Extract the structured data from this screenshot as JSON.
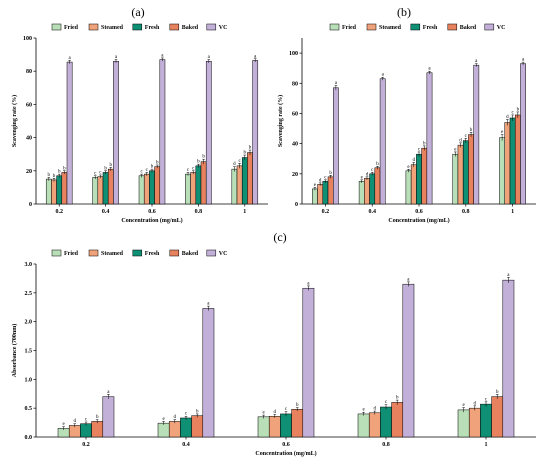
{
  "colors": {
    "Fried": "#b9dfb9",
    "Steamed": "#f0a27a",
    "Fresh": "#0f8f74",
    "Baked": "#e8825e",
    "VC": "#c3b0d8"
  },
  "chart_data": [
    {
      "panel": "(a)",
      "type": "bar",
      "categories": [
        "0.2",
        "0.4",
        "0.6",
        "0.8",
        "1"
      ],
      "xlabel": "Concentration (mg/mL)",
      "ylabel": "Scavenging rate (%)",
      "ylim": [
        0,
        100
      ],
      "yticks": [
        "0",
        "20",
        "40",
        "60",
        "80",
        "100"
      ],
      "legend": "top",
      "series": [
        {
          "name": "Fried",
          "values": [
            15,
            16,
            17,
            18,
            21
          ],
          "errors": [
            1,
            1,
            1,
            1,
            1.5
          ],
          "labels": [
            "b",
            "c",
            "c",
            "c",
            "d"
          ]
        },
        {
          "name": "Steamed",
          "values": [
            14.5,
            16.5,
            18,
            19,
            23
          ],
          "errors": [
            1,
            1,
            1,
            1,
            1.5
          ],
          "labels": [
            "b",
            "c",
            "c",
            "c",
            "c"
          ]
        },
        {
          "name": "Fresh",
          "values": [
            17,
            19,
            20,
            23,
            28
          ],
          "errors": [
            1,
            1,
            1,
            1,
            1.5
          ],
          "labels": [
            "b",
            "b",
            "b",
            "b",
            "b"
          ]
        },
        {
          "name": "Baked",
          "values": [
            19,
            21,
            22.5,
            25.5,
            31
          ],
          "errors": [
            1,
            1,
            1,
            1.5,
            1.5
          ],
          "labels": [
            "b",
            "b",
            "b",
            "b",
            "b"
          ]
        },
        {
          "name": "VC",
          "values": [
            85.5,
            86,
            87,
            86,
            86.5
          ],
          "errors": [
            1,
            1,
            1,
            1,
            1
          ],
          "labels": [
            "a",
            "a",
            "a",
            "a",
            "a"
          ]
        }
      ]
    },
    {
      "panel": "(b)",
      "type": "bar",
      "categories": [
        "0.2",
        "0.4",
        "0.6",
        "0.8",
        "1"
      ],
      "xlabel": "Concentration (mg/mL)",
      "ylabel": "Scavenging rate (%)",
      "ylim": [
        0,
        110
      ],
      "yticks": [
        "0",
        "20",
        "40",
        "60",
        "80",
        "100"
      ],
      "legend": "top",
      "series": [
        {
          "name": "Fried",
          "values": [
            10,
            15,
            22,
            33,
            44
          ],
          "errors": [
            1,
            1,
            1,
            1.5,
            2
          ],
          "labels": [
            "e",
            "e",
            "e",
            "e",
            "e"
          ]
        },
        {
          "name": "Steamed",
          "values": [
            13,
            17,
            26,
            39,
            54
          ],
          "errors": [
            1,
            1,
            1.5,
            1.5,
            2
          ],
          "labels": [
            "d",
            "d",
            "d",
            "d",
            "d"
          ]
        },
        {
          "name": "Fresh",
          "values": [
            15,
            20,
            33,
            42,
            57
          ],
          "errors": [
            1,
            1,
            1.5,
            1.5,
            2
          ],
          "labels": [
            "c",
            "c",
            "c",
            "c",
            "c"
          ]
        },
        {
          "name": "Baked",
          "values": [
            18,
            24,
            37,
            46,
            59
          ],
          "errors": [
            1,
            1,
            1.5,
            1.5,
            2
          ],
          "labels": [
            "b",
            "b",
            "b",
            "b",
            "b"
          ]
        },
        {
          "name": "VC",
          "values": [
            77,
            83,
            87,
            92,
            93
          ],
          "errors": [
            1.5,
            1,
            1,
            1,
            1
          ],
          "labels": [
            "a",
            "a",
            "a",
            "a",
            "a"
          ]
        }
      ]
    },
    {
      "panel": "(c)",
      "type": "bar",
      "categories": [
        "0.2",
        "0.4",
        "0.6",
        "0.8",
        "1"
      ],
      "xlabel": "Concentration (mg/mL)",
      "ylabel": "Absorbance (700nm)",
      "ylim": [
        0,
        3.0
      ],
      "yticks": [
        "0.0",
        "0.5",
        "1.0",
        "1.5",
        "2.0",
        "2.5",
        "3.0"
      ],
      "legend": "top",
      "series": [
        {
          "name": "Fried",
          "values": [
            0.15,
            0.24,
            0.35,
            0.4,
            0.47
          ],
          "errors": [
            0.03,
            0.03,
            0.03,
            0.03,
            0.04
          ],
          "labels": [
            "e",
            "e",
            "e",
            "e",
            "e"
          ]
        },
        {
          "name": "Steamed",
          "values": [
            0.2,
            0.27,
            0.36,
            0.42,
            0.5
          ],
          "errors": [
            0.03,
            0.03,
            0.03,
            0.03,
            0.04
          ],
          "labels": [
            "d",
            "d",
            "d",
            "d",
            "d"
          ]
        },
        {
          "name": "Fresh",
          "values": [
            0.23,
            0.33,
            0.4,
            0.52,
            0.57
          ],
          "errors": [
            0.03,
            0.03,
            0.04,
            0.04,
            0.04
          ],
          "labels": [
            "c",
            "c",
            "c",
            "c",
            "c"
          ]
        },
        {
          "name": "Baked",
          "values": [
            0.27,
            0.37,
            0.48,
            0.6,
            0.7
          ],
          "errors": [
            0.03,
            0.03,
            0.03,
            0.04,
            0.04
          ],
          "labels": [
            "b",
            "b",
            "b",
            "b",
            "b"
          ]
        },
        {
          "name": "VC",
          "values": [
            0.7,
            2.23,
            2.58,
            2.65,
            2.72
          ],
          "errors": [
            0.04,
            0.04,
            0.04,
            0.04,
            0.05
          ],
          "labels": [
            "a",
            "a",
            "a",
            "a",
            "a"
          ]
        }
      ]
    }
  ]
}
